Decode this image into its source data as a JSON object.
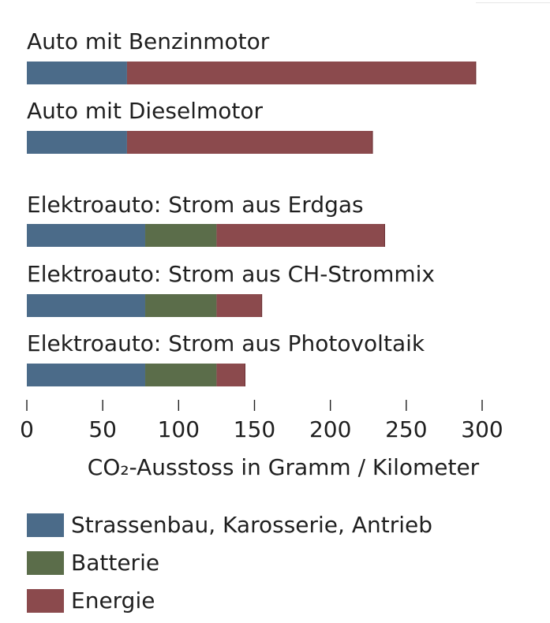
{
  "chart_data": {
    "type": "bar",
    "orientation": "horizontal",
    "stacked": true,
    "categories": [
      "Auto mit Benzinmotor",
      "Auto mit Dieselmotor",
      "Elektroauto: Strom aus Erdgas",
      "Elektroauto: Strom aus CH-Strommix",
      "Elektroauto: Strom aus Photovoltaik"
    ],
    "series": [
      {
        "name": "Strassenbau, Karosserie, Antrieb",
        "color": "#4b6b89",
        "values": [
          66,
          66,
          78,
          78,
          78
        ]
      },
      {
        "name": "Batterie",
        "color": "#5b6d4a",
        "values": [
          0,
          0,
          47,
          47,
          47
        ]
      },
      {
        "name": "Energie",
        "color": "#8b4a4d",
        "values": [
          230,
          162,
          111,
          30,
          19
        ]
      }
    ],
    "xlabel": "CO₂-Ausstoss in Gramm / Kilometer",
    "xlim": [
      0,
      300
    ],
    "ticks": [
      0,
      50,
      100,
      150,
      200,
      250,
      300
    ],
    "grid": false,
    "legend_position": "bottom"
  }
}
